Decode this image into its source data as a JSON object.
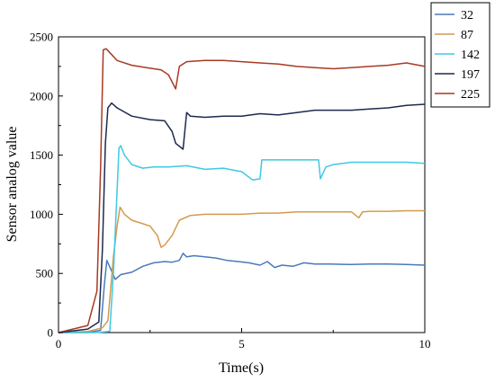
{
  "chart_data": {
    "type": "line",
    "title": "",
    "xlabel": "Time(s)",
    "ylabel": "Sensor analog value",
    "xlim": [
      0,
      10
    ],
    "ylim": [
      0,
      2500
    ],
    "x_ticks": [
      "0",
      "5",
      "10"
    ],
    "y_ticks": [
      "0",
      "500",
      "1000",
      "1500",
      "2000",
      "2500"
    ],
    "grid": false,
    "legend_position": "top-right",
    "series": [
      {
        "name": "32",
        "color": "#4a7ab8",
        "x": [
          0,
          0.8,
          1.15,
          1.25,
          1.32,
          1.45,
          1.55,
          1.7,
          2.0,
          2.3,
          2.6,
          2.9,
          3.1,
          3.3,
          3.4,
          3.5,
          3.7,
          4.0,
          4.3,
          4.6,
          4.9,
          5.2,
          5.5,
          5.7,
          5.9,
          6.1,
          6.4,
          6.7,
          7.0,
          7.4,
          8.0,
          8.5,
          9.0,
          9.5,
          10.0
        ],
        "y": [
          0,
          0,
          20,
          400,
          610,
          520,
          450,
          490,
          510,
          560,
          590,
          600,
          595,
          610,
          670,
          640,
          650,
          640,
          630,
          610,
          600,
          590,
          570,
          600,
          550,
          570,
          560,
          590,
          580,
          580,
          575,
          580,
          580,
          575,
          570
        ]
      },
      {
        "name": "87",
        "color": "#d49a4e",
        "x": [
          0,
          0.8,
          1.2,
          1.35,
          1.5,
          1.6,
          1.68,
          1.8,
          2.0,
          2.3,
          2.5,
          2.7,
          2.8,
          2.9,
          3.1,
          3.3,
          3.6,
          4.0,
          4.5,
          5.0,
          5.5,
          6.0,
          6.5,
          7.0,
          7.5,
          8.0,
          8.2,
          8.3,
          8.5,
          9.0,
          9.5,
          10.0
        ],
        "y": [
          0,
          10,
          40,
          100,
          640,
          900,
          1060,
          1000,
          950,
          920,
          900,
          820,
          720,
          740,
          820,
          950,
          990,
          1000,
          1000,
          1000,
          1010,
          1010,
          1020,
          1020,
          1020,
          1020,
          970,
          1020,
          1025,
          1025,
          1030,
          1030
        ]
      },
      {
        "name": "142",
        "color": "#3fc8e4",
        "x": [
          0,
          1.0,
          1.4,
          1.5,
          1.6,
          1.65,
          1.7,
          1.8,
          2.0,
          2.3,
          2.6,
          3.0,
          3.5,
          4.0,
          4.5,
          5.0,
          5.3,
          5.5,
          5.55,
          5.7,
          6.0,
          6.5,
          7.0,
          7.1,
          7.15,
          7.3,
          7.5,
          8.0,
          8.5,
          9.0,
          9.5,
          10.0
        ],
        "y": [
          0,
          0,
          10,
          500,
          1200,
          1560,
          1580,
          1500,
          1420,
          1390,
          1400,
          1400,
          1410,
          1380,
          1390,
          1360,
          1290,
          1300,
          1460,
          1460,
          1460,
          1460,
          1460,
          1460,
          1300,
          1400,
          1420,
          1440,
          1440,
          1440,
          1440,
          1430
        ]
      },
      {
        "name": "197",
        "color": "#1c2a4e",
        "x": [
          0,
          0.8,
          1.1,
          1.2,
          1.28,
          1.35,
          1.45,
          1.6,
          2.0,
          2.5,
          2.9,
          3.1,
          3.2,
          3.4,
          3.5,
          3.6,
          4.0,
          4.5,
          5.0,
          5.5,
          6.0,
          6.5,
          7.0,
          7.5,
          8.0,
          8.5,
          9.0,
          9.5,
          10.0
        ],
        "y": [
          0,
          30,
          90,
          700,
          1600,
          1900,
          1940,
          1900,
          1830,
          1800,
          1790,
          1700,
          1600,
          1550,
          1860,
          1830,
          1820,
          1830,
          1830,
          1850,
          1840,
          1860,
          1880,
          1880,
          1880,
          1890,
          1900,
          1920,
          1930
        ]
      },
      {
        "name": "225",
        "color": "#a83a22",
        "x": [
          0,
          0.8,
          1.05,
          1.15,
          1.22,
          1.3,
          1.45,
          1.6,
          2.0,
          2.4,
          2.8,
          3.0,
          3.2,
          3.3,
          3.5,
          4.0,
          4.5,
          5.0,
          5.5,
          6.0,
          6.5,
          7.0,
          7.5,
          8.0,
          8.5,
          9.0,
          9.5,
          10.0
        ],
        "y": [
          0,
          60,
          350,
          1400,
          2390,
          2400,
          2350,
          2300,
          2260,
          2240,
          2220,
          2180,
          2060,
          2250,
          2290,
          2300,
          2300,
          2290,
          2280,
          2270,
          2250,
          2240,
          2230,
          2240,
          2250,
          2260,
          2280,
          2250
        ]
      }
    ]
  }
}
